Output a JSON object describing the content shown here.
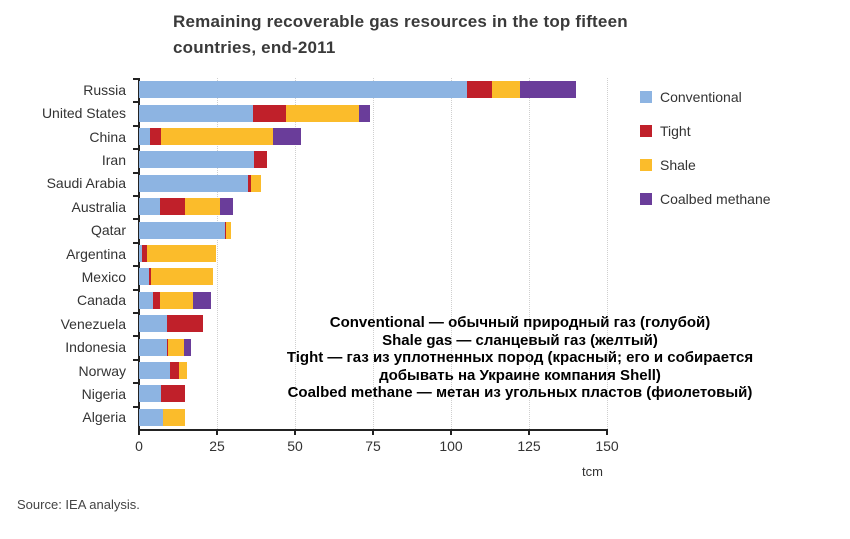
{
  "chart_data": {
    "type": "bar",
    "orientation": "horizontal",
    "stacked": true,
    "title": "Remaining recoverable gas resources in the top fifteen countries, end-2011",
    "title_lines": [
      "Remaining recoverable gas resources in the top fifteen",
      "countries, end-2011"
    ],
    "xlabel": "tcm",
    "ylabel": "",
    "xlim": [
      0,
      150
    ],
    "xticks": [
      0,
      25,
      50,
      75,
      100,
      125,
      150
    ],
    "grid": "vertical dotted",
    "legend_position": "right",
    "categories": [
      "Russia",
      "United States",
      "China",
      "Iran",
      "Saudi Arabia",
      "Australia",
      "Qatar",
      "Argentina",
      "Mexico",
      "Canada",
      "Venezuela",
      "Indonesia",
      "Norway",
      "Nigeria",
      "Algeria"
    ],
    "series": [
      {
        "name": "Conventional",
        "color": "#8db4e2",
        "values": [
          105,
          36.5,
          3.5,
          37,
          35,
          6.7,
          27.5,
          1,
          3.2,
          4.5,
          9,
          9,
          10,
          7,
          7.7
        ]
      },
      {
        "name": "Tight",
        "color": "#c0202a",
        "values": [
          8,
          10.5,
          3.5,
          4,
          1,
          8,
          0.5,
          1.5,
          0.6,
          2.2,
          11.5,
          0.3,
          2.8,
          7.7,
          0
        ]
      },
      {
        "name": "Shale",
        "color": "#fbbc2b",
        "values": [
          9,
          23.5,
          36,
          0,
          3,
          11.3,
          1.5,
          22.2,
          19.9,
          10.6,
          0,
          5.1,
          2.6,
          0,
          7
        ]
      },
      {
        "name": "Coalbed methane",
        "color": "#6a3d9a",
        "values": [
          18,
          3.5,
          9,
          0,
          0,
          4,
          0,
          0,
          0,
          5.7,
          0,
          2.3,
          0,
          0,
          0
        ]
      }
    ],
    "annotations": [
      "Conventional — обычный природный газ (голубой)",
      "Shale gas — сланцевый газ (желтый)",
      "Tight — газ из уплотненных пород (красный; его и собирается",
      "добывать на Украине компания Shell)",
      "Coalbed methane — метан из угольных пластов (фиолетовый)"
    ],
    "source": "Source: IEA analysis."
  }
}
